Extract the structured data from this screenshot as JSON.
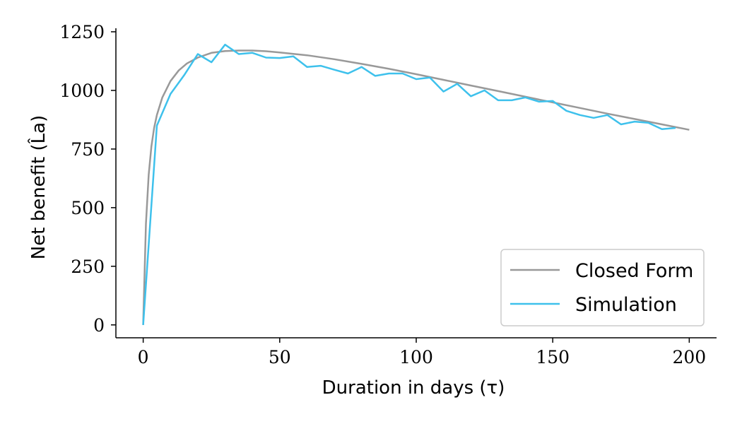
{
  "chart_data": {
    "type": "line",
    "xlabel": "Duration in days (τ)",
    "ylabel": "Net benefit (L̂a)",
    "xlim": [
      -10,
      210
    ],
    "ylim": [
      -55,
      1265
    ],
    "xticks": [
      0,
      50,
      100,
      150,
      200
    ],
    "yticks": [
      0,
      250,
      500,
      750,
      1000,
      1250
    ],
    "xtick_labels": [
      "0",
      "50",
      "100",
      "150",
      "200"
    ],
    "ytick_labels": [
      "0",
      "250",
      "500",
      "750",
      "1000",
      "1250"
    ],
    "legend_position": "lower-right",
    "grid": false,
    "series": [
      {
        "name": "Closed Form",
        "color": "#999999",
        "x": [
          0,
          1,
          2,
          3,
          4,
          5,
          7,
          10,
          13,
          16,
          20,
          25,
          30,
          35,
          40,
          45,
          50,
          60,
          70,
          80,
          90,
          100,
          110,
          120,
          130,
          140,
          150,
          160,
          170,
          180,
          190,
          200
        ],
        "y": [
          0,
          430,
          640,
          760,
          840,
          895,
          970,
          1040,
          1085,
          1115,
          1140,
          1160,
          1168,
          1170,
          1170,
          1167,
          1162,
          1150,
          1133,
          1113,
          1092,
          1069,
          1045,
          1021,
          997,
          973,
          949,
          925,
          901,
          878,
          855,
          832
        ]
      },
      {
        "name": "Simulation",
        "color": "#3ec1ec",
        "x": [
          0,
          5,
          10,
          15,
          20,
          25,
          30,
          35,
          40,
          45,
          50,
          55,
          60,
          65,
          70,
          75,
          80,
          85,
          90,
          95,
          100,
          105,
          110,
          115,
          120,
          125,
          130,
          135,
          140,
          145,
          150,
          155,
          160,
          165,
          170,
          175,
          180,
          185,
          190,
          195
        ],
        "y": [
          0,
          850,
          985,
          1065,
          1155,
          1120,
          1195,
          1155,
          1160,
          1140,
          1138,
          1145,
          1100,
          1105,
          1088,
          1072,
          1100,
          1062,
          1072,
          1072,
          1048,
          1055,
          995,
          1028,
          975,
          1000,
          958,
          958,
          970,
          952,
          955,
          913,
          895,
          883,
          895,
          855,
          867,
          862,
          835,
          840
        ]
      }
    ]
  }
}
